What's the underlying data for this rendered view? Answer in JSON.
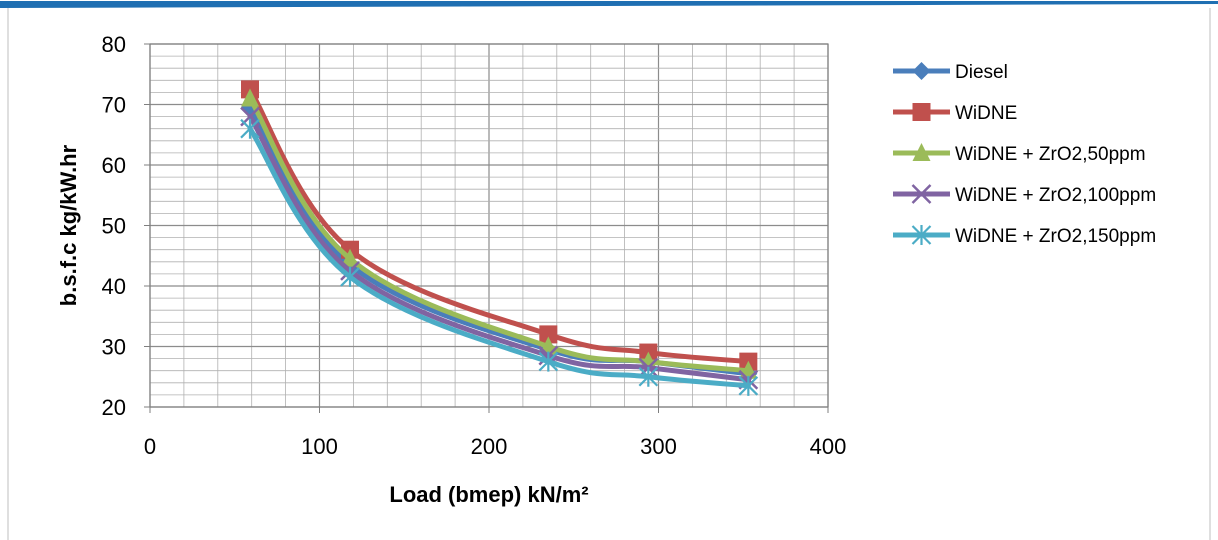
{
  "chart_data": {
    "type": "line",
    "title": "",
    "xlabel": "Load (bmep) kN/m²",
    "ylabel": "b.s.f.c kg/kW.hr",
    "xlim": [
      0,
      400
    ],
    "ylim": [
      20,
      80
    ],
    "x_ticks": [
      0,
      100,
      200,
      300,
      400
    ],
    "y_ticks": [
      20,
      30,
      40,
      50,
      60,
      70,
      80
    ],
    "grid": true,
    "legend_position": "right",
    "x": [
      59,
      118,
      235,
      294,
      353
    ],
    "series": [
      {
        "name": "Diesel",
        "values": [
          69.5,
          43.5,
          29.5,
          27.5,
          25.5
        ],
        "color": "#4a7ebb",
        "marker": "diamond"
      },
      {
        "name": "WiDNE",
        "values": [
          72.5,
          46,
          32,
          29,
          27.5
        ],
        "color": "#c0504d",
        "marker": "square"
      },
      {
        "name": "WiDNE + ZrO2,50ppm",
        "values": [
          71,
          44.5,
          30,
          27.5,
          26
        ],
        "color": "#9bbb59",
        "marker": "triangle"
      },
      {
        "name": "WiDNE + ZrO2,100ppm",
        "values": [
          68,
          42.5,
          28.5,
          26.5,
          24.5
        ],
        "color": "#8064a2",
        "marker": "x"
      },
      {
        "name": "WiDNE + ZrO2,150ppm",
        "values": [
          66,
          41.5,
          27.5,
          25,
          23.5
        ],
        "color": "#4bacc6",
        "marker": "star"
      }
    ]
  },
  "header_color": "#1f6fb2"
}
